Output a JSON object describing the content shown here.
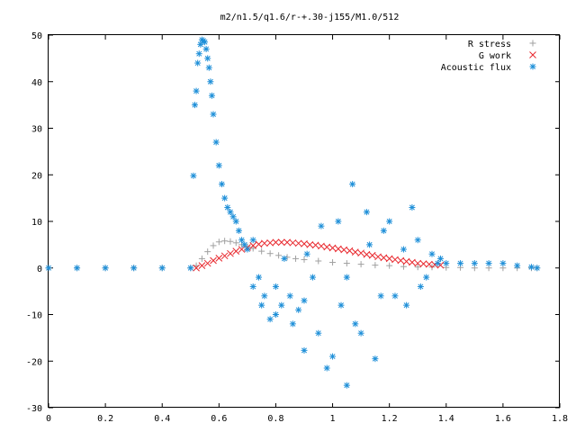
{
  "chart_data": {
    "type": "scatter",
    "title": "m2/n1.5/q1.6/r-+.30-j155/M1.0/512",
    "xlabel": "",
    "ylabel": "",
    "xlim": [
      0,
      1.8
    ],
    "ylim": [
      -30,
      50
    ],
    "x_ticks": [
      0,
      0.2,
      0.4,
      0.6,
      0.8,
      1,
      1.2,
      1.4,
      1.6,
      1.8
    ],
    "x_tick_labels": [
      "0",
      "0.2",
      "0.4",
      "0.6",
      "0.8",
      "1",
      "1.2",
      "1.4",
      "1.6",
      "1.8"
    ],
    "y_ticks": [
      -30,
      -20,
      -10,
      0,
      10,
      20,
      30,
      40,
      50
    ],
    "y_tick_labels": [
      "-30",
      "-20",
      "-10",
      "0",
      "10",
      "20",
      "30",
      "40",
      "50"
    ],
    "grid": false,
    "legend_position": "top-right",
    "series": [
      {
        "name": "R stress",
        "marker": "plus",
        "color": "#a0a0a0",
        "x": [
          0,
          0.1,
          0.2,
          0.3,
          0.4,
          0.5,
          0.52,
          0.54,
          0.56,
          0.58,
          0.6,
          0.62,
          0.64,
          0.66,
          0.68,
          0.7,
          0.72,
          0.75,
          0.78,
          0.81,
          0.84,
          0.87,
          0.9,
          0.95,
          1.0,
          1.05,
          1.1,
          1.15,
          1.2,
          1.25,
          1.3,
          1.35,
          1.4,
          1.45,
          1.5,
          1.55,
          1.6,
          1.65,
          1.7,
          1.72
        ],
        "y": [
          0,
          0,
          0,
          0,
          0,
          0,
          0.5,
          2.0,
          3.5,
          4.8,
          5.6,
          5.8,
          5.7,
          5.4,
          5.0,
          4.6,
          4.2,
          3.6,
          3.1,
          2.7,
          2.3,
          2.0,
          1.8,
          1.5,
          1.2,
          1.0,
          0.8,
          0.6,
          0.5,
          0.3,
          0.2,
          0.2,
          0.1,
          0.1,
          0,
          0,
          0,
          0,
          0,
          0
        ]
      },
      {
        "name": "G work",
        "marker": "cross",
        "color": "#e8282e",
        "x": [
          0.52,
          0.54,
          0.56,
          0.58,
          0.6,
          0.62,
          0.64,
          0.66,
          0.68,
          0.7,
          0.72,
          0.74,
          0.76,
          0.78,
          0.8,
          0.82,
          0.84,
          0.86,
          0.88,
          0.9,
          0.92,
          0.94,
          0.96,
          0.98,
          1.0,
          1.02,
          1.04,
          1.06,
          1.08,
          1.1,
          1.12,
          1.14,
          1.16,
          1.18,
          1.2,
          1.22,
          1.24,
          1.26,
          1.28,
          1.3,
          1.32,
          1.34,
          1.36,
          1.38
        ],
        "y": [
          0,
          0.5,
          1.0,
          1.6,
          2.1,
          2.6,
          3.1,
          3.6,
          4.0,
          4.4,
          4.8,
          5.1,
          5.3,
          5.4,
          5.5,
          5.5,
          5.5,
          5.4,
          5.3,
          5.2,
          5.0,
          4.9,
          4.7,
          4.5,
          4.3,
          4.1,
          3.9,
          3.7,
          3.4,
          3.2,
          2.9,
          2.7,
          2.4,
          2.2,
          2.0,
          1.8,
          1.6,
          1.4,
          1.2,
          1.0,
          0.9,
          0.8,
          0.7,
          0.6
        ]
      },
      {
        "name": "Acoustic flux",
        "marker": "star",
        "color": "#1e8fd8",
        "x": [
          0.0,
          0.1,
          0.2,
          0.3,
          0.4,
          0.5,
          0.51,
          0.515,
          0.52,
          0.525,
          0.53,
          0.535,
          0.54,
          0.545,
          0.55,
          0.555,
          0.56,
          0.565,
          0.57,
          0.575,
          0.58,
          0.59,
          0.6,
          0.61,
          0.62,
          0.63,
          0.64,
          0.65,
          0.66,
          0.67,
          0.68,
          0.69,
          0.7,
          0.72,
          0.75,
          0.72,
          0.74,
          0.76,
          0.78,
          0.8,
          0.8,
          0.82,
          0.83,
          0.85,
          0.86,
          0.88,
          0.9,
          0.9,
          0.91,
          0.93,
          0.95,
          0.96,
          0.98,
          1.0,
          1.02,
          1.03,
          1.05,
          1.05,
          1.07,
          1.08,
          1.1,
          1.12,
          1.13,
          1.15,
          1.17,
          1.18,
          1.2,
          1.22,
          1.25,
          1.26,
          1.28,
          1.3,
          1.31,
          1.33,
          1.35,
          1.37,
          1.38,
          1.4,
          1.45,
          1.5,
          1.55,
          1.6,
          1.65,
          1.7,
          1.72
        ],
        "y": [
          0,
          0,
          0,
          0,
          0,
          0,
          19.8,
          35,
          38,
          44,
          46,
          48,
          49,
          48.8,
          48.5,
          47,
          45,
          43,
          40,
          37,
          33,
          27,
          22,
          18,
          15,
          13,
          12,
          11,
          10,
          8,
          6,
          5,
          4,
          -4,
          -8,
          6,
          -2,
          -6,
          -11,
          -10,
          -4,
          -8,
          2,
          -6,
          -12,
          -9,
          -17.7,
          -7,
          3,
          -2,
          -14,
          9,
          -21.5,
          -19,
          10,
          -8,
          -25.2,
          -2,
          18,
          -12,
          -14,
          12,
          5,
          -19.5,
          -6,
          8,
          10,
          -6,
          4,
          -8,
          13,
          6,
          -4,
          -2,
          3,
          1,
          2,
          1,
          1,
          1,
          1,
          1,
          0.5,
          0.2,
          0
        ]
      }
    ]
  }
}
